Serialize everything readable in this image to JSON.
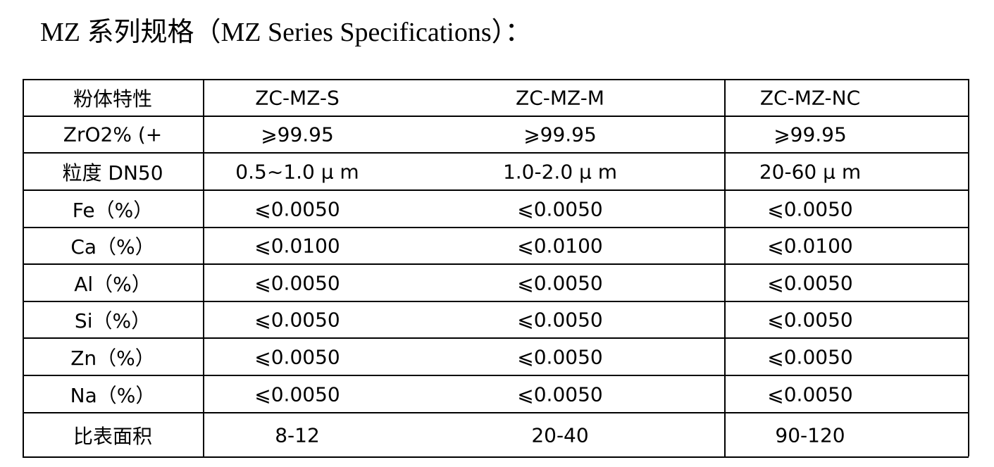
{
  "header": {
    "title": "MZ 系列规格（MZ Series Specifications）："
  },
  "table": {
    "rows": [
      [
        "粉体特性",
        "ZC-MZ-S",
        "ZC-MZ-M",
        "ZC-MZ-NC"
      ],
      [
        "ZrO2% (+",
        "⩾99.95",
        "⩾99.95",
        "⩾99.95"
      ],
      [
        "粒度  DN50",
        "0.5~1.0 μ m",
        "1.0-2.0 μ m",
        "20-60 μ m"
      ],
      [
        "Fe（%）",
        "⩽0.0050",
        "⩽0.0050",
        "⩽0.0050"
      ],
      [
        "Ca（%）",
        "⩽0.0100",
        "⩽0.0100",
        "⩽0.0100"
      ],
      [
        "Al（%）",
        "⩽0.0050",
        "⩽0.0050",
        "⩽0.0050"
      ],
      [
        "Si（%）",
        "⩽0.0050",
        "⩽0.0050",
        "⩽0.0050"
      ],
      [
        "Zn（%）",
        "⩽0.0050",
        "⩽0.0050",
        "⩽0.0050"
      ],
      [
        "Na（%）",
        "⩽0.0050",
        "⩽0.0050",
        "⩽0.0050"
      ],
      [
        "比表面积",
        "8-12",
        "20-40",
        "90-120"
      ]
    ]
  }
}
